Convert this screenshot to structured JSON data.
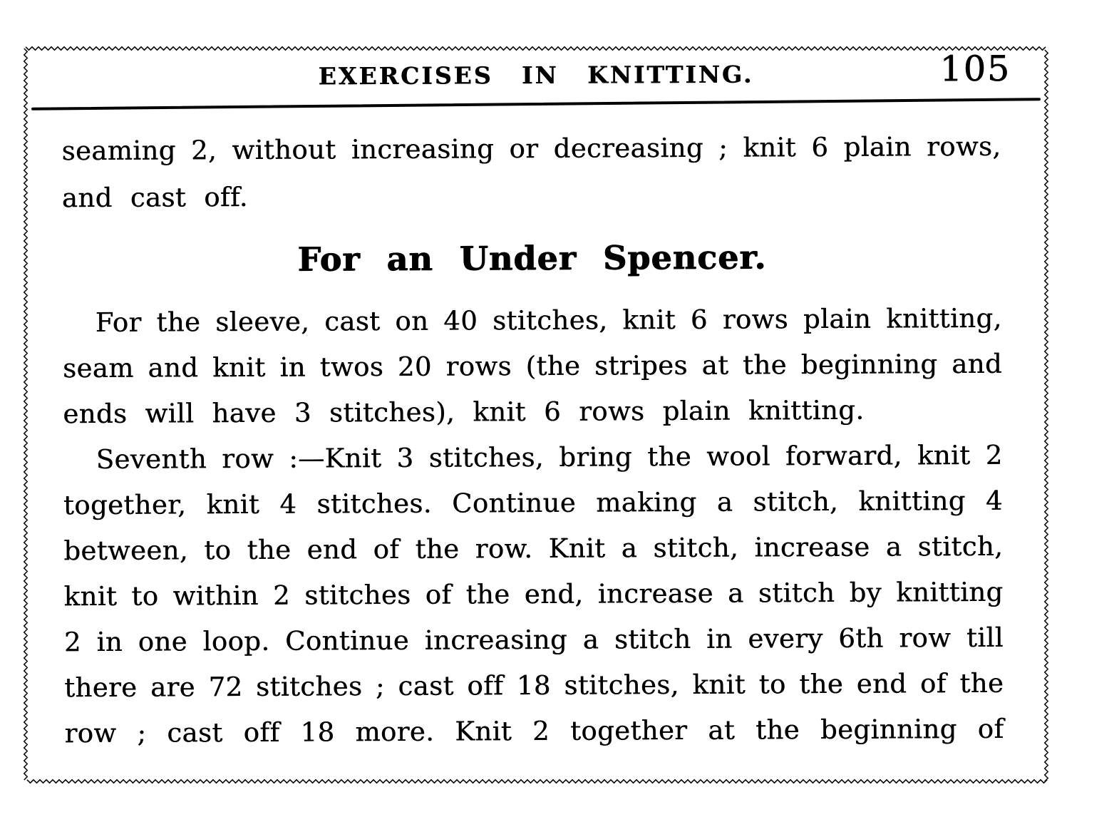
{
  "header": {
    "title": "EXERCISES IN KNITTING.",
    "page_number": "105"
  },
  "body": {
    "para_continuation": {
      "lines": [
        "seaming 2, without increasing or decreasing ; knit 6 plain rows,",
        "and cast off."
      ]
    },
    "section_heading": "For an Under Spencer.",
    "para_sleeve": {
      "lines": [
        "For the sleeve, cast on 40 stitches, knit 6 rows plain knitting,",
        "seam and knit in twos 20 rows (the stripes at the beginning and",
        "ends will have 3 stitches), knit 6 rows plain knitting."
      ]
    },
    "para_seventh_row": {
      "lines": [
        "Seventh row :—Knit 3 stitches, bring the wool forward, knit 2",
        "together, knit 4 stitches.  Continue making a stitch, knitting 4",
        "between, to the end of the row.  Knit a stitch, increase a stitch,",
        "knit to within 2 stitches of the end, increase a stitch by knitting",
        "2 in one loop.  Continue increasing a stitch in every 6th row till",
        "there are 72 stitches ; cast off 18 stitches, knit to the end of the",
        "row ; cast off  18 more.  Knit 2 together at the beginning of"
      ]
    }
  },
  "decor": {
    "border_style": "zigzag",
    "ink_color": "#000000",
    "paper_color": "#ffffff"
  }
}
